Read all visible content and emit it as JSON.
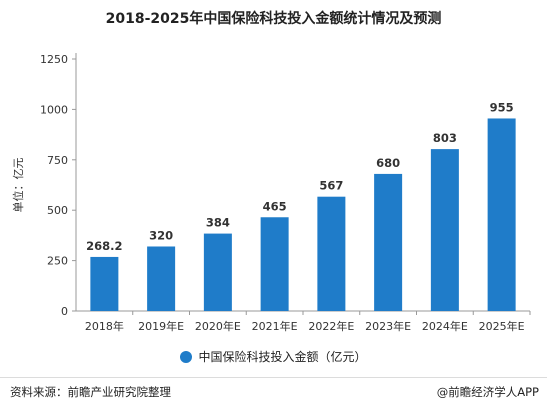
{
  "chart_data": {
    "type": "bar",
    "title": "2018-2025年中国保险科技投入金额统计情况及预测",
    "categories": [
      "2018年",
      "2019年E",
      "2020年E",
      "2021年E",
      "2022年E",
      "2023年E",
      "2024年E",
      "2025年E"
    ],
    "series": [
      {
        "name": "中国保险科技投入金额（亿元）",
        "values": [
          268.2,
          320,
          384,
          465,
          567,
          680,
          803,
          955
        ]
      }
    ],
    "data_labels": [
      "268.2",
      "320",
      "384",
      "465",
      "567",
      "680",
      "803",
      "955"
    ],
    "ylabel": "单位：亿元",
    "ylim": [
      0,
      1250
    ],
    "yticks": [
      0,
      250,
      500,
      750,
      1000,
      1250
    ],
    "grid": false,
    "legend": "bottom",
    "colors": {
      "bar": "#1f7cc9",
      "axis": "#999999"
    }
  },
  "footer": {
    "source": "资料来源：前瞻产业研究院整理",
    "credit": "@前瞻经济学人APP"
  }
}
